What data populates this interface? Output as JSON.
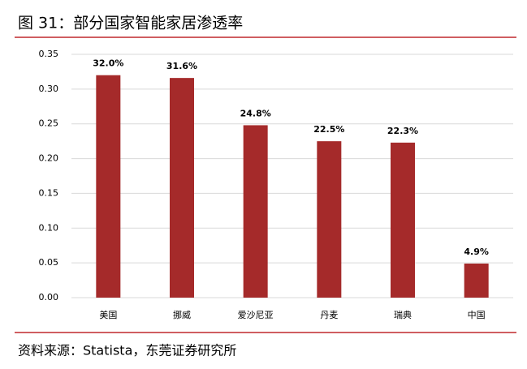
{
  "chart_data": {
    "type": "bar",
    "title": "图 31：部分国家智能家居渗透率",
    "source": "资料来源：Statista，东莞证券研究所",
    "categories": [
      "美国",
      "挪威",
      "爱沙尼亚",
      "丹麦",
      "瑞典",
      "中国"
    ],
    "values": [
      0.32,
      0.316,
      0.248,
      0.225,
      0.223,
      0.049
    ],
    "value_labels": [
      "32.0%",
      "31.6%",
      "24.8%",
      "22.5%",
      "22.3%",
      "4.9%"
    ],
    "color": "#a52a2a",
    "ylim": [
      0,
      0.35
    ],
    "yticks": [
      {
        "value": 0,
        "label": "0.00"
      },
      {
        "value": 0.05,
        "label": "0.05"
      },
      {
        "value": 0.1,
        "label": "0.10"
      },
      {
        "value": 0.15,
        "label": "0.15"
      },
      {
        "value": 0.2,
        "label": "0.20"
      },
      {
        "value": 0.25,
        "label": "0.25"
      },
      {
        "value": 0.3,
        "label": "0.30"
      },
      {
        "value": 0.35,
        "label": "0.35"
      }
    ],
    "grid": true
  }
}
